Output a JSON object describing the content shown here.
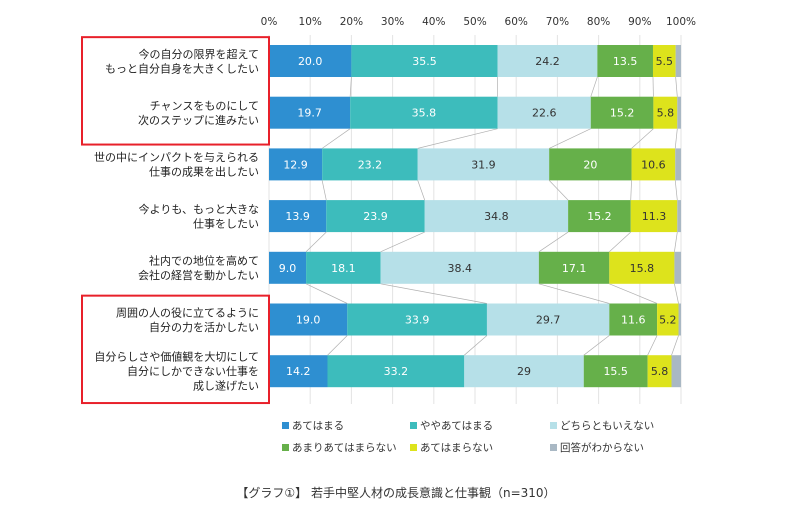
{
  "chart_data": {
    "type": "bar",
    "orientation": "horizontal",
    "stacked": true,
    "title": "【グラフ①】 若手中堅人材の成長意識と仕事観（n=310）",
    "x_ticks": [
      "0%",
      "10%",
      "20%",
      "30%",
      "40%",
      "50%",
      "60%",
      "70%",
      "80%",
      "90%",
      "100%"
    ],
    "xlim": [
      0,
      100
    ],
    "grid": true,
    "legend_position": "bottom",
    "categories": [
      [
        "今の自分の限界を超えて",
        "もっと自分自身を大きくしたい"
      ],
      [
        "チャンスをものにして",
        "次のステップに進みたい"
      ],
      [
        "世の中にインパクトを与えられる",
        "仕事の成果を出したい"
      ],
      [
        "今よりも、もっと大きな",
        "仕事をしたい"
      ],
      [
        "社内での地位を高めて",
        "会社の経営を動かしたい"
      ],
      [
        "周囲の人の役に立てるように",
        "自分の力を活かしたい"
      ],
      [
        "自分らしさや価値観を大切にして",
        "自分にしかできない仕事を",
        "成し遂げたい"
      ]
    ],
    "highlighted_groups": [
      [
        0,
        1
      ],
      [
        5,
        6
      ]
    ],
    "series": [
      {
        "name": "あてはまる",
        "color": "#2e8fd1",
        "label_color": "#ffffff",
        "values": [
          20.0,
          19.7,
          12.9,
          13.9,
          9.0,
          19.0,
          14.2
        ],
        "labels": [
          "20.0",
          "19.7",
          "12.9",
          "13.9",
          "9.0",
          "19.0",
          "14.2"
        ]
      },
      {
        "name": "ややあてはまる",
        "color": "#3dbcbc",
        "label_color": "#ffffff",
        "values": [
          35.5,
          35.8,
          23.2,
          23.9,
          18.1,
          33.9,
          33.2
        ],
        "labels": [
          "35.5",
          "35.8",
          "23.2",
          "23.9",
          "18.1",
          "33.9",
          "33.2"
        ]
      },
      {
        "name": "どちらともいえない",
        "color": "#b6e0e8",
        "label_color": "#333333",
        "values": [
          24.2,
          22.6,
          31.9,
          34.8,
          38.4,
          29.7,
          29
        ],
        "labels": [
          "24.2",
          "22.6",
          "31.9",
          "34.8",
          "38.4",
          "29.7",
          "29"
        ]
      },
      {
        "name": "あまりあてはまらない",
        "color": "#66b04a",
        "label_color": "#ffffff",
        "values": [
          13.5,
          15.2,
          20,
          15.2,
          17.1,
          11.6,
          15.5
        ],
        "labels": [
          "13.5",
          "15.2",
          "20",
          "15.2",
          "17.1",
          "11.6",
          "15.5"
        ]
      },
      {
        "name": "あてはまらない",
        "color": "#dde31c",
        "label_color": "#333333",
        "values": [
          5.5,
          5.8,
          10.6,
          11.3,
          15.8,
          5.2,
          5.8
        ],
        "labels": [
          "5.5",
          "5.8",
          "10.6",
          "11.3",
          "15.8",
          "5.2",
          "5.8"
        ]
      },
      {
        "name": "回答がわからない",
        "color": "#a9b8c4",
        "label_color": "#333333",
        "values": [
          1.3,
          0.9,
          1.4,
          0.9,
          1.6,
          0.6,
          2.3
        ],
        "labels": [
          "",
          "",
          "",
          "",
          "",
          "",
          ""
        ]
      }
    ]
  }
}
